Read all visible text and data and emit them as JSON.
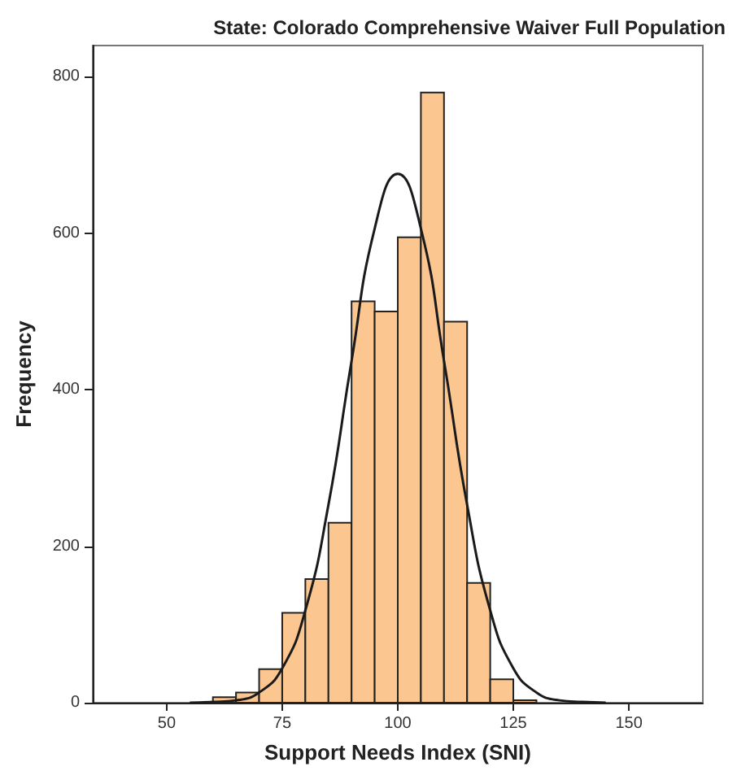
{
  "chart_data": {
    "type": "histogram",
    "title": "State: Colorado Comprehensive Waiver Full Population",
    "xlabel": "Support Needs Index (SNI)",
    "ylabel": "Frequency",
    "bins": [
      60,
      65,
      70,
      75,
      80,
      85,
      90,
      95,
      100,
      105,
      110,
      115,
      120,
      125,
      130
    ],
    "values": [
      7,
      13,
      43,
      115,
      158,
      230,
      513,
      500,
      595,
      780,
      487,
      153,
      30,
      3
    ],
    "color": "#fbc690",
    "series": [
      {
        "type": "line",
        "color": "#1a1a1a",
        "x": [
          55,
          60,
          65,
          70,
          75,
          80,
          85,
          90,
          95,
          100,
          105,
          110,
          115,
          120,
          125,
          130,
          135,
          140,
          145
        ],
        "values": [
          0,
          1,
          3,
          13,
          44,
          118,
          253,
          437,
          606,
          676,
          606,
          437,
          253,
          118,
          44,
          13,
          3,
          1,
          0
        ]
      }
    ],
    "xlim": [
      34,
      166
    ],
    "xticks": [
      50,
      75,
      100,
      125,
      150
    ],
    "ylim": [
      0,
      840
    ],
    "yticks": [
      0,
      200,
      400,
      600,
      800
    ],
    "grid": false,
    "marker": "none",
    "line_style": "solid"
  }
}
